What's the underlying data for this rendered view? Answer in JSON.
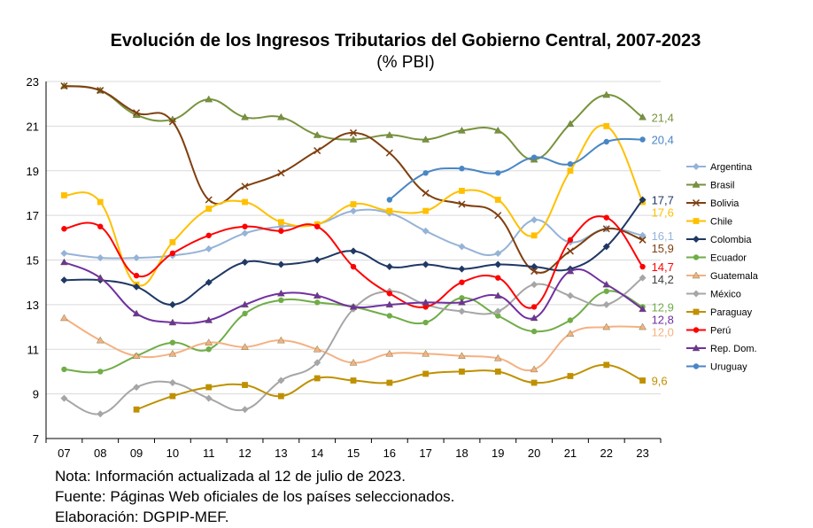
{
  "chart_data": {
    "type": "line",
    "title": "Evolución de los Ingresos Tributarios del Gobierno Central, 2007-2023",
    "subtitle": "(% PBI)",
    "xlabel": "",
    "ylabel": "",
    "categories": [
      "07",
      "08",
      "09",
      "10",
      "11",
      "12",
      "13",
      "14",
      "15",
      "16",
      "17",
      "18",
      "19",
      "20",
      "21",
      "22",
      "23"
    ],
    "ylim": [
      7,
      23
    ],
    "yticks": [
      7,
      9,
      11,
      13,
      15,
      17,
      19,
      21,
      23
    ],
    "grid": "horizontal",
    "legend_position": "right",
    "series": [
      {
        "name": "Argentina",
        "color": "#95b3d7",
        "marker": "diamond",
        "values": [
          15.3,
          15.1,
          15.1,
          15.2,
          15.5,
          16.2,
          16.5,
          16.6,
          17.2,
          17.1,
          16.3,
          15.6,
          15.3,
          16.8,
          15.8,
          16.4,
          16.1
        ],
        "end_label": "16,1"
      },
      {
        "name": "Brasil",
        "color": "#77933c",
        "marker": "triangle",
        "values": [
          22.8,
          22.6,
          21.5,
          21.3,
          22.2,
          21.4,
          21.4,
          20.6,
          20.4,
          20.6,
          20.4,
          20.8,
          20.8,
          19.5,
          21.1,
          22.4,
          21.4
        ],
        "end_label": "21,4"
      },
      {
        "name": "Bolivia",
        "color": "#7f3f0f",
        "marker": "x",
        "values": [
          22.8,
          22.6,
          21.6,
          21.2,
          17.7,
          18.3,
          18.9,
          19.9,
          20.7,
          19.8,
          18.0,
          17.5,
          17.0,
          14.5,
          15.4,
          16.4,
          15.9
        ],
        "end_label": "15,9"
      },
      {
        "name": "Chile",
        "color": "#ffc000",
        "marker": "square",
        "values": [
          17.9,
          17.6,
          13.9,
          15.8,
          17.3,
          17.6,
          16.7,
          16.6,
          17.5,
          17.2,
          17.2,
          18.1,
          17.7,
          16.1,
          19.0,
          21.0,
          17.6
        ],
        "end_label": "17,6"
      },
      {
        "name": "Colombia",
        "color": "#1f3864",
        "marker": "diamond",
        "values": [
          14.1,
          14.1,
          13.8,
          13.0,
          14.0,
          14.9,
          14.8,
          15.0,
          15.4,
          14.7,
          14.8,
          14.6,
          14.8,
          14.7,
          14.6,
          15.6,
          17.7
        ],
        "end_label": "17,7"
      },
      {
        "name": "Ecuador",
        "color": "#70ad47",
        "marker": "circle",
        "values": [
          10.1,
          10.0,
          10.7,
          11.3,
          11.0,
          12.6,
          13.2,
          13.1,
          12.9,
          12.5,
          12.2,
          13.3,
          12.5,
          11.8,
          12.3,
          13.6,
          12.9
        ],
        "end_label": "12,9"
      },
      {
        "name": "Guatemala",
        "color": "#f4b183",
        "marker": "triangle",
        "values": [
          12.4,
          11.4,
          10.7,
          10.8,
          11.3,
          11.1,
          11.4,
          11.0,
          10.4,
          10.8,
          10.8,
          10.7,
          10.6,
          10.1,
          11.7,
          12.0,
          12.0
        ],
        "end_label": "12,0"
      },
      {
        "name": "México",
        "color": "#a6a6a6",
        "marker": "diamond",
        "values": [
          8.8,
          8.1,
          9.3,
          9.5,
          8.8,
          8.3,
          9.6,
          10.4,
          12.8,
          13.6,
          13.0,
          12.7,
          12.7,
          13.9,
          13.4,
          13.0,
          14.2
        ],
        "end_label": "14,2"
      },
      {
        "name": "Paraguay",
        "color": "#bf9000",
        "marker": "square",
        "values": [
          null,
          null,
          8.3,
          8.9,
          9.3,
          9.4,
          8.9,
          9.7,
          9.6,
          9.5,
          9.9,
          10.0,
          10.0,
          9.5,
          9.8,
          10.3,
          9.6
        ],
        "end_label": "9,6"
      },
      {
        "name": "Perú",
        "color": "#ff0000",
        "marker": "circle",
        "values": [
          16.4,
          16.5,
          14.3,
          15.3,
          16.1,
          16.5,
          16.3,
          16.5,
          14.7,
          13.5,
          12.9,
          14.0,
          14.2,
          12.9,
          15.9,
          16.9,
          14.7
        ],
        "end_label": "14,7"
      },
      {
        "name": "Rep. Dom.",
        "color": "#7030a0",
        "marker": "triangle",
        "values": [
          14.9,
          14.2,
          12.6,
          12.2,
          12.3,
          13.0,
          13.5,
          13.4,
          12.9,
          13.0,
          13.1,
          13.1,
          13.4,
          12.4,
          14.5,
          13.9,
          12.8
        ],
        "end_label": "12,8"
      },
      {
        "name": "Uruguay",
        "color": "#4a86c5",
        "marker": "circle",
        "values": [
          null,
          null,
          null,
          null,
          null,
          null,
          null,
          null,
          null,
          17.7,
          18.9,
          19.1,
          18.9,
          19.6,
          19.3,
          20.3,
          20.4
        ],
        "end_label": "20,4"
      }
    ]
  },
  "notes": [
    "Nota: Información actualizada al 12 de julio de 2023.",
    "Fuente: Páginas Web oficiales de los países seleccionados.",
    "Elaboración: DGPIP-MEF."
  ]
}
